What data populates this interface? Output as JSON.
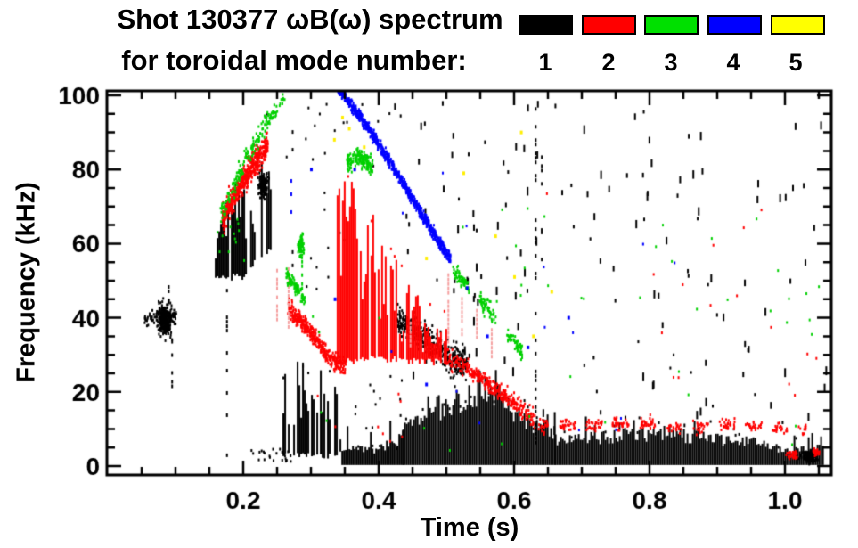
{
  "figure": {
    "title_line1": "Shot 130377 ωB(ω) spectrum",
    "title_line2": "for toroidal mode number:",
    "background": "#ffffff"
  },
  "legend": {
    "items": [
      {
        "label": "1",
        "color": "#000000"
      },
      {
        "label": "2",
        "color": "#ff0000"
      },
      {
        "label": "3",
        "color": "#00e000"
      },
      {
        "label": "4",
        "color": "#0000ff"
      },
      {
        "label": "5",
        "color": "#ffff00"
      }
    ]
  },
  "chart_data": {
    "type": "scatter",
    "subtype": "mode-spectrogram",
    "title": "Shot 130377 ωB(ω) spectrum for toroidal mode number: 1 2 3 4 5",
    "xlabel": "Time (s)",
    "ylabel": "Frequency (kHz)",
    "xlim": [
      0.0,
      1.068
    ],
    "ylim": [
      -2.4,
      101.2
    ],
    "x_ticks": [
      {
        "v": 0.2,
        "label": "0.2"
      },
      {
        "v": 0.4,
        "label": "0.4"
      },
      {
        "v": 0.6,
        "label": "0.6"
      },
      {
        "v": 0.8,
        "label": "0.8"
      },
      {
        "v": 1.0,
        "label": "1.0"
      }
    ],
    "y_ticks": [
      {
        "v": 0,
        "label": "0"
      },
      {
        "v": 20,
        "label": "20"
      },
      {
        "v": 40,
        "label": "40"
      },
      {
        "v": 60,
        "label": "60"
      },
      {
        "v": 80,
        "label": "80"
      },
      {
        "v": 100,
        "label": "100"
      }
    ],
    "x_minor_step": 0.05,
    "y_minor_step": 5,
    "grid": false,
    "legend_position": "top-right",
    "mode_colors": {
      "1": "#000000",
      "2": "#ff0000",
      "3": "#00d000",
      "4": "#0000ff",
      "5": "#ffee00"
    },
    "light_red": "#f5a0a0",
    "features": [
      {
        "type": "cluster",
        "mode": 1,
        "t": 0.082,
        "f": 40,
        "st": 0.011,
        "sf": 4.5,
        "n": 260
      },
      {
        "type": "band",
        "mode": 1,
        "pts": [
          [
            0.053,
            40
          ],
          [
            0.1,
            40.5
          ]
        ],
        "w": 2.0,
        "n": 90
      },
      {
        "type": "vline",
        "mode": 1,
        "t": 0.095,
        "f0": 22,
        "f1": 34,
        "density": 0.35
      },
      {
        "type": "vline",
        "mode": 1,
        "t": 0.09,
        "f0": 44,
        "f1": 49,
        "density": 0.5
      },
      {
        "type": "vline",
        "mode": 1,
        "t": 0.176,
        "f0": 1,
        "f1": 48,
        "density": 0.3
      },
      {
        "type": "striation",
        "mode": 1,
        "t0": 0.158,
        "t1": 0.205,
        "top": [
          [
            0.158,
            62
          ],
          [
            0.18,
            74
          ],
          [
            0.205,
            78
          ]
        ],
        "bot": [
          [
            0.158,
            50
          ],
          [
            0.205,
            50
          ]
        ],
        "density": 0.85,
        "jitter": 8
      },
      {
        "type": "striation",
        "mode": 1,
        "t0": 0.205,
        "t1": 0.24,
        "top": [
          [
            0.205,
            80
          ],
          [
            0.24,
            80
          ]
        ],
        "bot": [
          [
            0.205,
            52
          ],
          [
            0.24,
            58
          ]
        ],
        "density": 0.55,
        "jitter": 10
      },
      {
        "type": "cluster",
        "mode": 1,
        "t": 0.228,
        "f": 76,
        "st": 0.006,
        "sf": 3.5,
        "n": 170
      },
      {
        "type": "vline",
        "mode": 1,
        "t": 0.273,
        "f0": 45,
        "f1": 100,
        "density": 0.22
      },
      {
        "type": "striation",
        "mode": 1,
        "t0": 0.258,
        "t1": 0.345,
        "top": [
          [
            0.258,
            24
          ],
          [
            0.27,
            30
          ],
          [
            0.3,
            22
          ],
          [
            0.32,
            28
          ],
          [
            0.345,
            18
          ]
        ],
        "bot": [
          [
            0.258,
            2
          ],
          [
            0.345,
            2
          ]
        ],
        "density": 0.7,
        "jitter": 6
      },
      {
        "type": "speckles",
        "mode": 1,
        "n": 25,
        "t": [
          0.21,
          0.27
        ],
        "f": [
          1,
          5
        ]
      },
      {
        "type": "noiseband",
        "mode": 1,
        "t0": 0.345,
        "t1": 0.435,
        "top": [
          [
            0.345,
            5
          ],
          [
            0.39,
            4
          ],
          [
            0.435,
            8
          ]
        ],
        "bot": 1,
        "spike": 3
      },
      {
        "type": "band",
        "mode": 1,
        "pts": [
          [
            0.425,
            40
          ],
          [
            0.46,
            36
          ],
          [
            0.5,
            30
          ],
          [
            0.53,
            27
          ]
        ],
        "w": 4,
        "n": 420
      },
      {
        "type": "noiseband",
        "mode": 1,
        "t0": 0.435,
        "t1": 0.66,
        "top": [
          [
            0.435,
            10
          ],
          [
            0.47,
            14
          ],
          [
            0.52,
            18
          ],
          [
            0.56,
            22
          ],
          [
            0.6,
            14
          ],
          [
            0.66,
            9
          ]
        ],
        "bot": 1,
        "spike": 5
      },
      {
        "type": "noiseband",
        "mode": 1,
        "t0": 0.66,
        "t1": 1.055,
        "top": [
          [
            0.66,
            7
          ],
          [
            0.75,
            8
          ],
          [
            0.82,
            9
          ],
          [
            0.9,
            7
          ],
          [
            0.97,
            6
          ],
          [
            1.0,
            4
          ],
          [
            1.055,
            5
          ]
        ],
        "bot": 1,
        "spike": 3
      },
      {
        "type": "cluster",
        "mode": 1,
        "t": 1.035,
        "f": 3,
        "st": 0.012,
        "sf": 1.5,
        "n": 130
      },
      {
        "type": "vline",
        "mode": 1,
        "t": 0.632,
        "f0": 2,
        "f1": 102,
        "density": 0.35
      },
      {
        "type": "vline",
        "mode": 1,
        "t": 0.641,
        "f0": 55,
        "f1": 100,
        "density": 0.2
      },
      {
        "type": "speckles",
        "mode": 1,
        "n": 90,
        "t": [
          0.63,
          1.06
        ],
        "f": [
          10,
          100
        ],
        "tall": true
      },
      {
        "type": "speckles",
        "mode": 1,
        "n": 30,
        "t": [
          0.42,
          0.63
        ],
        "f": [
          55,
          100
        ],
        "tall": true
      },
      {
        "type": "speckles",
        "mode": 1,
        "n": 25,
        "t": [
          0.44,
          0.63
        ],
        "f": [
          25,
          55
        ],
        "tall": true
      },
      {
        "type": "speckles",
        "mode": 1,
        "n": 15,
        "t": [
          0.29,
          0.35
        ],
        "f": [
          45,
          100
        ]
      },
      {
        "type": "speckles",
        "mode": 1,
        "n": 12,
        "t": [
          0.22,
          0.42
        ],
        "f": [
          80,
          100
        ]
      },
      {
        "type": "speckles",
        "mode": 1,
        "n": 14,
        "t": [
          0.35,
          0.44
        ],
        "f": [
          5,
          25
        ]
      },
      {
        "type": "band",
        "mode": 2,
        "pts": [
          [
            0.168,
            67
          ],
          [
            0.2,
            78
          ],
          [
            0.235,
            87
          ]
        ],
        "w": 3.5,
        "n": 520
      },
      {
        "type": "band",
        "mode": 2,
        "pts": [
          [
            0.265,
            43
          ],
          [
            0.3,
            36
          ],
          [
            0.33,
            29
          ],
          [
            0.35,
            27.5
          ]
        ],
        "w": 2.5,
        "n": 380
      },
      {
        "type": "striation",
        "mode": 2,
        "t0": 0.338,
        "t1": 0.5,
        "top": [
          [
            0.338,
            83
          ],
          [
            0.36,
            75
          ],
          [
            0.4,
            62
          ],
          [
            0.44,
            50
          ],
          [
            0.47,
            42
          ],
          [
            0.5,
            36
          ]
        ],
        "bot": [
          [
            0.338,
            27
          ],
          [
            0.4,
            28
          ],
          [
            0.47,
            27
          ],
          [
            0.5,
            27
          ]
        ],
        "density": 0.9,
        "jitter": 14
      },
      {
        "type": "band",
        "mode": 2,
        "pts": [
          [
            0.5,
            30
          ],
          [
            0.55,
            24
          ],
          [
            0.6,
            17
          ],
          [
            0.63,
            12.5
          ]
        ],
        "w": 2.5,
        "n": 320
      },
      {
        "type": "band",
        "mode": 2,
        "pts": [
          [
            0.635,
            11.5
          ],
          [
            0.7,
            11
          ],
          [
            0.78,
            12
          ],
          [
            0.85,
            10.5
          ],
          [
            0.92,
            11.5
          ],
          [
            0.99,
            10.5
          ],
          [
            1.03,
            10.5
          ]
        ],
        "w": 1.8,
        "n": 420,
        "clumpy": true
      },
      {
        "type": "cluster",
        "mode": 2,
        "t": 1.01,
        "f": 3.5,
        "st": 0.008,
        "sf": 1.2,
        "n": 35
      },
      {
        "type": "cluster",
        "mode": 2,
        "t": 1.045,
        "f": 4,
        "st": 0.006,
        "sf": 1.2,
        "n": 25
      },
      {
        "type": "vline",
        "mode": 2,
        "t": 0.25,
        "f0": 40,
        "f1": 55,
        "density": 0.9,
        "light": true
      },
      {
        "type": "vline",
        "mode": 2,
        "t": 0.267,
        "f0": 38,
        "f1": 54,
        "density": 0.9,
        "light": true
      },
      {
        "type": "vline",
        "mode": 2,
        "t": 0.447,
        "f0": 33,
        "f1": 40,
        "density": 0.8,
        "light": true
      },
      {
        "type": "vline",
        "mode": 2,
        "t": 0.503,
        "f0": 34,
        "f1": 53,
        "density": 0.9,
        "light": true
      },
      {
        "type": "vline",
        "mode": 2,
        "t": 0.523,
        "f0": 36,
        "f1": 46,
        "density": 0.8,
        "light": true
      },
      {
        "type": "vline",
        "mode": 2,
        "t": 0.545,
        "f0": 34,
        "f1": 43,
        "density": 0.8,
        "light": true
      },
      {
        "type": "vline",
        "mode": 2,
        "t": 0.567,
        "f0": 30,
        "f1": 38,
        "density": 0.8,
        "light": true
      },
      {
        "type": "speckles",
        "mode": 2,
        "n": 16,
        "t": [
          0.62,
          1.05
        ],
        "f": [
          15,
          80
        ]
      },
      {
        "type": "speckles",
        "mode": 2,
        "n": 8,
        "t": [
          0.3,
          0.45
        ],
        "f": [
          5,
          20
        ]
      },
      {
        "type": "band",
        "mode": 3,
        "pts": [
          [
            0.165,
            68
          ],
          [
            0.2,
            82
          ],
          [
            0.23,
            92
          ],
          [
            0.26,
            100
          ]
        ],
        "w": 3,
        "n": 170
      },
      {
        "type": "speckles",
        "mode": 3,
        "n": 12,
        "t": [
          0.16,
          0.2
        ],
        "f": [
          55,
          68
        ]
      },
      {
        "type": "cluster",
        "mode": 3,
        "t": 0.284,
        "f": 60,
        "st": 0.004,
        "sf": 3,
        "n": 95
      },
      {
        "type": "band",
        "mode": 3,
        "pts": [
          [
            0.262,
            52
          ],
          [
            0.275,
            49
          ],
          [
            0.29,
            45
          ]
        ],
        "w": 2,
        "n": 90
      },
      {
        "type": "vline",
        "mode": 3,
        "t": 0.287,
        "f0": 46,
        "f1": 56,
        "density": 0.5
      },
      {
        "type": "band",
        "mode": 3,
        "pts": [
          [
            0.352,
            82
          ],
          [
            0.37,
            83.5
          ],
          [
            0.39,
            81
          ]
        ],
        "w": 2.5,
        "n": 160
      },
      {
        "type": "band",
        "mode": 3,
        "pts": [
          [
            0.5,
            55
          ],
          [
            0.53,
            49
          ],
          [
            0.56,
            43
          ],
          [
            0.585,
            37
          ],
          [
            0.615,
            30
          ]
        ],
        "w": 2,
        "n": 280,
        "clumpy": true
      },
      {
        "type": "speckles",
        "mode": 3,
        "n": 30,
        "t": [
          0.3,
          1.05
        ],
        "f": [
          3,
          70
        ]
      },
      {
        "type": "speckles",
        "mode": 3,
        "n": 8,
        "t": [
          0.55,
          0.68
        ],
        "f": [
          40,
          70
        ]
      },
      {
        "type": "speckles",
        "mode": 3,
        "n": 6,
        "t": [
          0.9,
          1.06
        ],
        "f": [
          35,
          100
        ]
      },
      {
        "type": "band",
        "mode": 4,
        "pts": [
          [
            0.335,
            103
          ],
          [
            0.37,
            95
          ],
          [
            0.41,
            84
          ],
          [
            0.45,
            72
          ],
          [
            0.48,
            63
          ],
          [
            0.505,
            56
          ]
        ],
        "w": 1.6,
        "n": 900
      },
      {
        "type": "vline",
        "mode": 4,
        "t": 0.271,
        "f0": 69,
        "f1": 79,
        "density": 0.45
      },
      {
        "type": "dots",
        "mode": 4,
        "pts": [
          [
            0.364,
            80
          ],
          [
            0.3,
            80
          ],
          [
            0.335,
            45
          ],
          [
            0.53,
            48
          ],
          [
            0.56,
            35
          ],
          [
            0.62,
            32
          ],
          [
            0.47,
            22
          ],
          [
            0.68,
            40
          ]
        ]
      },
      {
        "type": "speckles",
        "mode": 4,
        "n": 14,
        "t": [
          0.28,
          0.88
        ],
        "f": [
          5,
          90
        ]
      },
      {
        "type": "dots",
        "mode": 5,
        "pts": [
          [
            0.334,
            88
          ],
          [
            0.346,
            94
          ],
          [
            0.356,
            91
          ],
          [
            0.378,
            86
          ],
          [
            0.47,
            56
          ],
          [
            0.525,
            79
          ],
          [
            0.6,
            51
          ],
          [
            0.628,
            35
          ],
          [
            0.572,
            62
          ],
          [
            0.61,
            90
          ],
          [
            0.655,
            47
          ]
        ]
      }
    ]
  }
}
